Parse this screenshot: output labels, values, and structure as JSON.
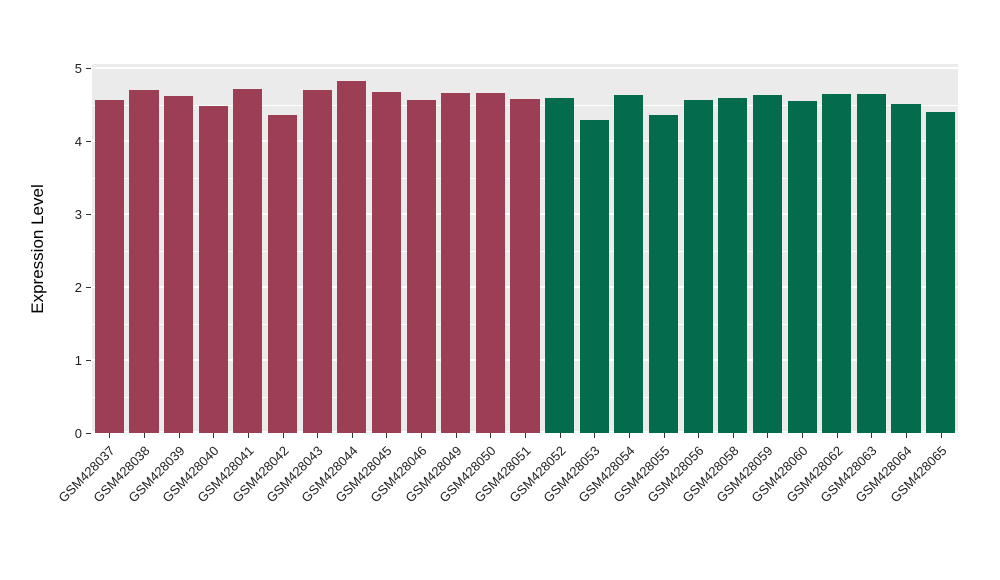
{
  "figure": {
    "description": "Bar chart of gene expression level per GEO sample, two color groups",
    "panel_bg": "#EBEBEB",
    "grid_color": "#FFFFFF",
    "tick_color": "#333333",
    "text_color": "#1f1f1f"
  },
  "chart_data": {
    "type": "bar",
    "title": "",
    "xlabel": "",
    "ylabel": "Expression Level",
    "ylim": [
      0,
      5
    ],
    "yticks": [
      0,
      1,
      2,
      3,
      4,
      5
    ],
    "grid": true,
    "legend": "none",
    "group_colors": {
      "group1": "#9C3F55",
      "group2": "#046C4C"
    },
    "categories": [
      "GSM428037",
      "GSM428038",
      "GSM428039",
      "GSM428040",
      "GSM428041",
      "GSM428042",
      "GSM428043",
      "GSM428044",
      "GSM428045",
      "GSM428046",
      "GSM428049",
      "GSM428050",
      "GSM428051",
      "GSM428052",
      "GSM428053",
      "GSM428054",
      "GSM428055",
      "GSM428056",
      "GSM428058",
      "GSM428059",
      "GSM428060",
      "GSM428062",
      "GSM428063",
      "GSM428064",
      "GSM428065"
    ],
    "values": [
      4.56,
      4.7,
      4.62,
      4.48,
      4.72,
      4.36,
      4.7,
      4.83,
      4.68,
      4.57,
      4.66,
      4.66,
      4.58,
      4.59,
      4.29,
      4.63,
      4.36,
      4.57,
      4.59,
      4.64,
      4.55,
      4.65,
      4.65,
      4.51,
      4.4
    ],
    "colors": [
      "#9C3F55",
      "#9C3F55",
      "#9C3F55",
      "#9C3F55",
      "#9C3F55",
      "#9C3F55",
      "#9C3F55",
      "#9C3F55",
      "#9C3F55",
      "#9C3F55",
      "#9C3F55",
      "#9C3F55",
      "#9C3F55",
      "#046C4C",
      "#046C4C",
      "#046C4C",
      "#046C4C",
      "#046C4C",
      "#046C4C",
      "#046C4C",
      "#046C4C",
      "#046C4C",
      "#046C4C",
      "#046C4C",
      "#046C4C"
    ]
  }
}
